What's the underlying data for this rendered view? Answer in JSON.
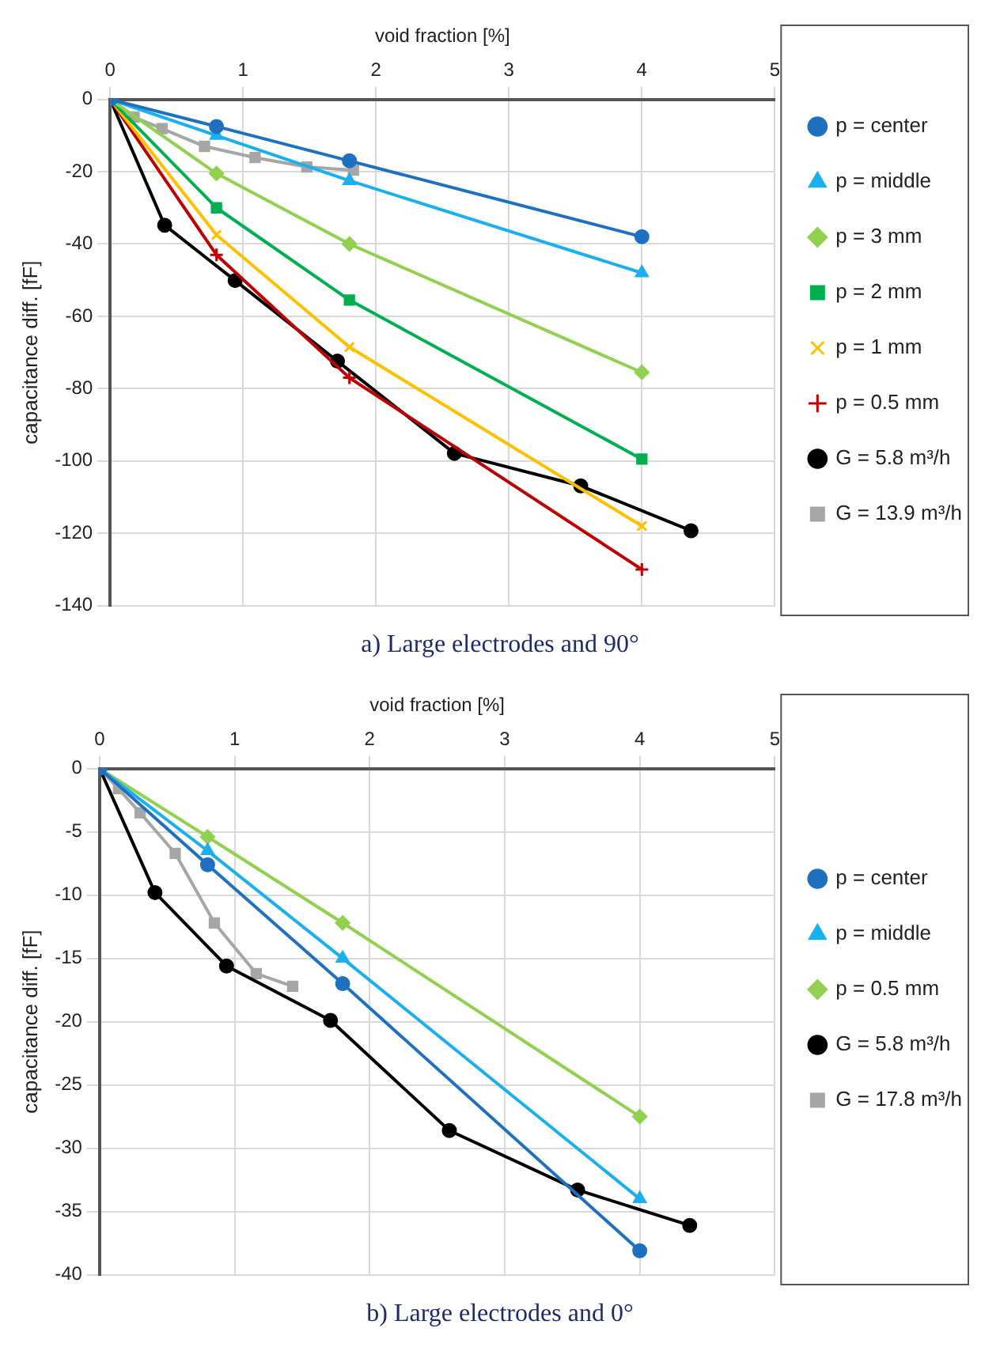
{
  "chart_data": [
    {
      "type": "line",
      "xlabel": "void fraction [%]",
      "ylabel": "capacitance diff. [fF]",
      "xlim": [
        0,
        5
      ],
      "xticks": [
        0,
        1,
        2,
        3,
        4,
        5
      ],
      "ylim": [
        -140,
        0
      ],
      "yticks": [
        -140,
        -120,
        -100,
        -80,
        -60,
        -40,
        -20,
        0
      ],
      "grid": true,
      "legend": "right",
      "line_style": "solid",
      "annotations": [
        "a) Large electrodes and 90°"
      ],
      "series": [
        {
          "name": "p = center",
          "color": "#1f70c1",
          "marker": "circle",
          "x": [
            0,
            0.8,
            1.8,
            4
          ],
          "values": [
            0,
            -7.5,
            -17,
            -38
          ]
        },
        {
          "name": "p = middle",
          "color": "#1ab0f0",
          "marker": "triangle",
          "x": [
            0,
            0.8,
            1.8,
            4
          ],
          "values": [
            0,
            -10,
            -22.5,
            -48
          ]
        },
        {
          "name": "p = 3 mm",
          "color": "#92d050",
          "marker": "diamond",
          "x": [
            0,
            0.8,
            1.8,
            4
          ],
          "values": [
            0,
            -20.5,
            -40,
            -75.5
          ]
        },
        {
          "name": "p = 2 mm",
          "color": "#00b050",
          "marker": "square",
          "x": [
            0,
            0.8,
            1.8,
            4
          ],
          "values": [
            0,
            -30,
            -55.5,
            -99.5
          ]
        },
        {
          "name": "p = 1 mm",
          "color": "#ffc000",
          "marker": "cross",
          "x": [
            0,
            0.8,
            1.8,
            4
          ],
          "values": [
            0,
            -37.5,
            -68.5,
            -118
          ]
        },
        {
          "name": "p = 0.5 mm",
          "color": "#c00000",
          "marker": "plus",
          "x": [
            0,
            0.8,
            1.8,
            4
          ],
          "values": [
            0,
            -43,
            -77,
            -130
          ]
        },
        {
          "name": "G = 5.8 m³/h",
          "color": "#000000",
          "marker": "circle",
          "x": [
            0,
            0.41,
            0.94,
            1.71,
            2.59,
            3.54,
            4.37
          ],
          "values": [
            0,
            -34.8,
            -50.1,
            -72.4,
            -97.9,
            -106.9,
            -119.3
          ]
        },
        {
          "name": "G = 13.9 m³/h",
          "color": "#a6a6a6",
          "marker": "square",
          "x": [
            0,
            0.18,
            0.39,
            0.71,
            1.09,
            1.48,
            1.83
          ],
          "values": [
            0,
            -4.9,
            -8.1,
            -13,
            -16.1,
            -18.7,
            -19.6
          ]
        }
      ]
    },
    {
      "type": "line",
      "xlabel": "void fraction [%]",
      "ylabel": "capacitance diff. [fF]",
      "xlim": [
        0,
        5
      ],
      "xticks": [
        0,
        1,
        2,
        3,
        4,
        5
      ],
      "ylim": [
        -40,
        0
      ],
      "yticks": [
        -40,
        -35,
        -30,
        -25,
        -20,
        -15,
        -10,
        -5,
        0
      ],
      "grid": true,
      "legend": "right",
      "line_style": "solid",
      "annotations": [
        "b) Large electrodes and 0°"
      ],
      "series": [
        {
          "name": "p = center",
          "color": "#1f70c1",
          "marker": "circle",
          "x": [
            0,
            0.8,
            1.8,
            4
          ],
          "values": [
            0,
            -7.6,
            -17,
            -38.1
          ]
        },
        {
          "name": "p = middle",
          "color": "#1ab0f0",
          "marker": "triangle",
          "x": [
            0,
            0.8,
            1.8,
            4
          ],
          "values": [
            0,
            -6.5,
            -15,
            -34
          ]
        },
        {
          "name": "p = 0.5 mm",
          "color": "#92d050",
          "marker": "diamond",
          "x": [
            0,
            0.8,
            1.8,
            4
          ],
          "values": [
            0,
            -5.4,
            -12.2,
            -27.5
          ]
        },
        {
          "name": "G = 5.8 m³/h",
          "color": "#000000",
          "marker": "circle",
          "x": [
            0,
            0.41,
            0.94,
            1.71,
            2.59,
            3.54,
            4.37
          ],
          "values": [
            0,
            -9.8,
            -15.6,
            -19.9,
            -28.6,
            -33.3,
            -36.1
          ]
        },
        {
          "name": "G = 17.8 m³/h",
          "color": "#a6a6a6",
          "marker": "square",
          "x": [
            0,
            0.14,
            0.3,
            0.56,
            0.85,
            1.16,
            1.43
          ],
          "values": [
            0,
            -1.6,
            -3.5,
            -6.7,
            -12.2,
            -16.2,
            -17.2
          ]
        }
      ]
    }
  ]
}
